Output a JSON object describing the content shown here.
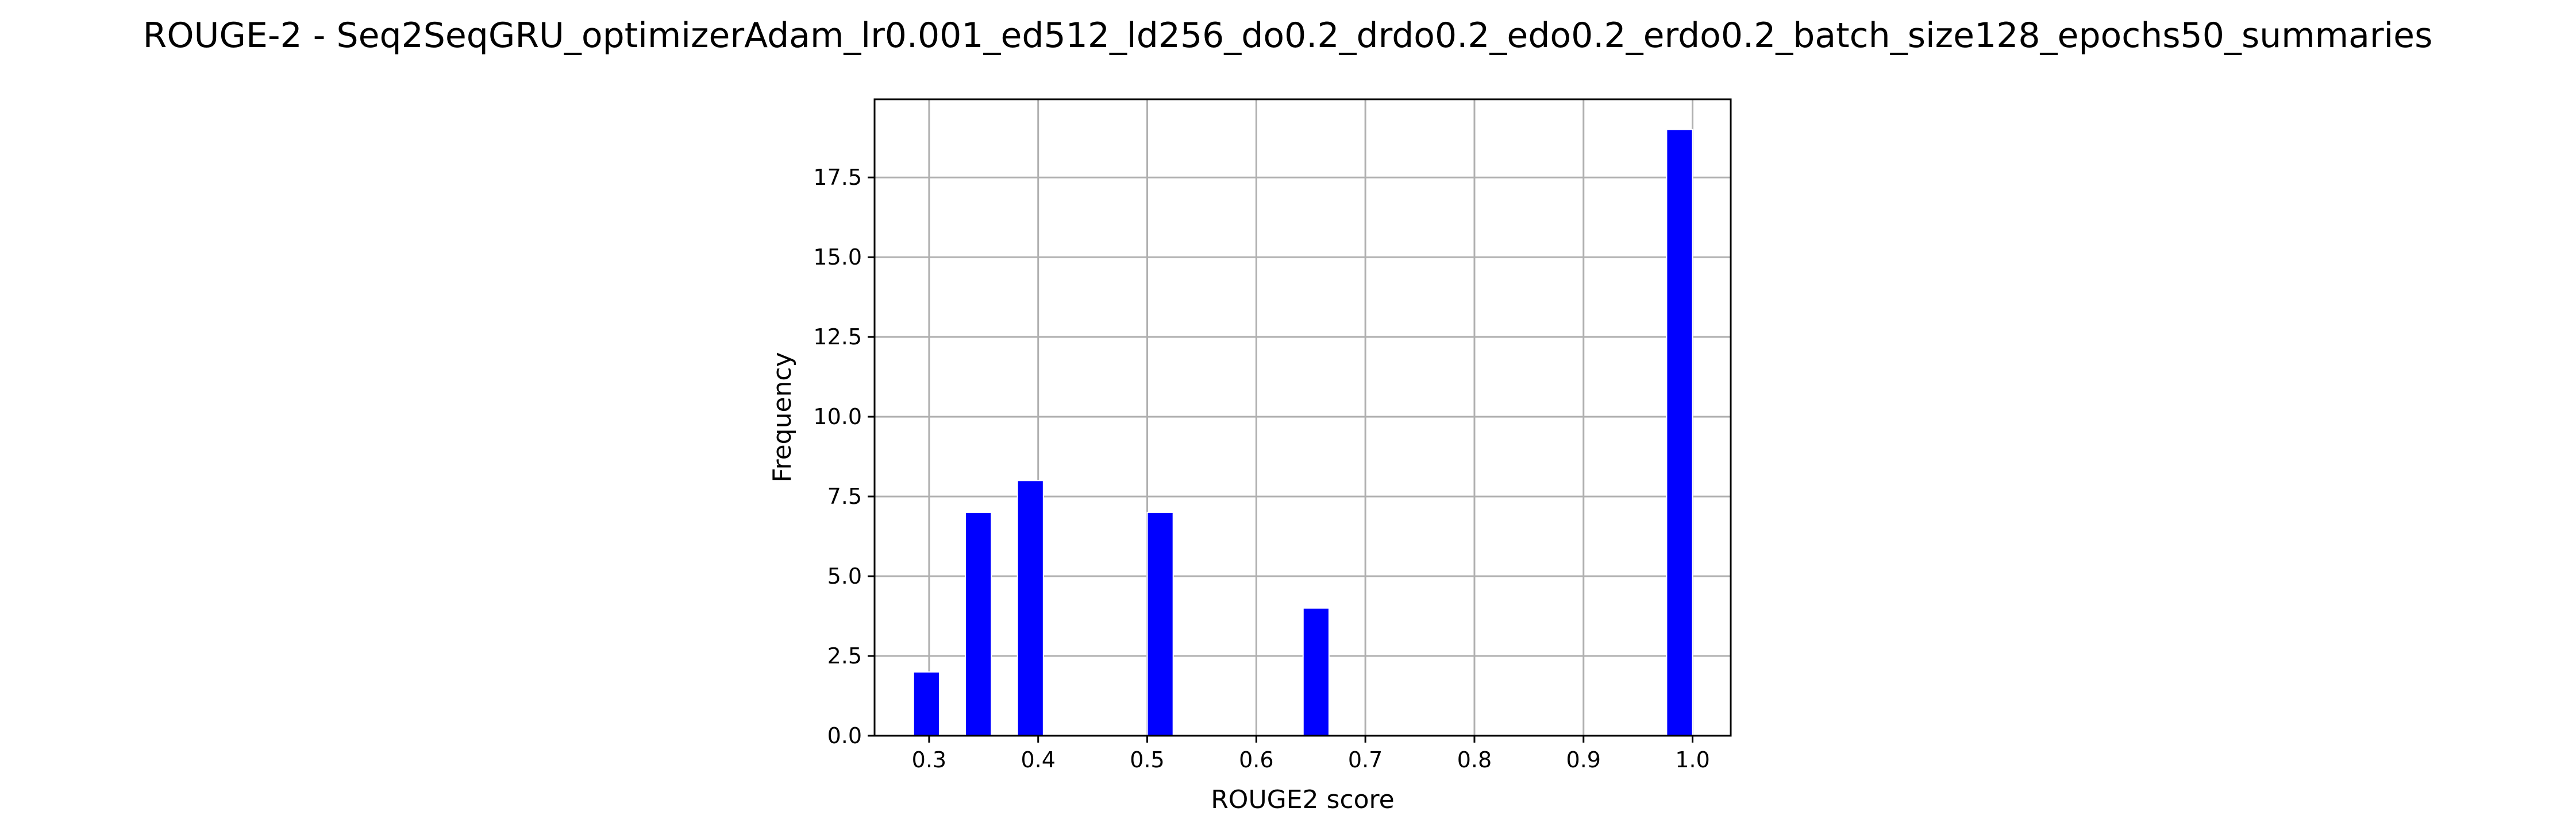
{
  "chart_data": {
    "type": "bar",
    "title": "ROUGE-2 - Seq2SeqGRU_optimizerAdam_lr0.001_ed512_ld256_do0.2_drdo0.2_edo0.2_erdo0.2_batch_size128_epochs50_summaries",
    "xlabel": "ROUGE2 score",
    "ylabel": "Frequency",
    "xlim": [
      0.25,
      1.035
    ],
    "ylim": [
      0,
      19.95
    ],
    "grid": true,
    "bin_width": 0.0238,
    "bars": [
      {
        "x_start": 0.2857,
        "value": 2
      },
      {
        "x_start": 0.3333,
        "value": 7
      },
      {
        "x_start": 0.381,
        "value": 8
      },
      {
        "x_start": 0.5,
        "value": 7
      },
      {
        "x_start": 0.6429,
        "value": 4
      },
      {
        "x_start": 0.9762,
        "value": 19
      }
    ],
    "x_ticks": [
      {
        "value": 0.3,
        "label": "0.3"
      },
      {
        "value": 0.4,
        "label": "0.4"
      },
      {
        "value": 0.5,
        "label": "0.5"
      },
      {
        "value": 0.6,
        "label": "0.6"
      },
      {
        "value": 0.7,
        "label": "0.7"
      },
      {
        "value": 0.8,
        "label": "0.8"
      },
      {
        "value": 0.9,
        "label": "0.9"
      },
      {
        "value": 1.0,
        "label": "1.0"
      }
    ],
    "y_ticks": [
      {
        "value": 0,
        "label": "0.0"
      },
      {
        "value": 2.5,
        "label": "2.5"
      },
      {
        "value": 5,
        "label": "5.0"
      },
      {
        "value": 7.5,
        "label": "7.5"
      },
      {
        "value": 10,
        "label": "10.0"
      },
      {
        "value": 12.5,
        "label": "12.5"
      },
      {
        "value": 15,
        "label": "15.0"
      },
      {
        "value": 17.5,
        "label": "17.5"
      }
    ],
    "colors": {
      "bar": "#0000ff",
      "bar_edge": "#ffffff",
      "grid": "#b0b0b0",
      "axes": "#000000"
    }
  }
}
